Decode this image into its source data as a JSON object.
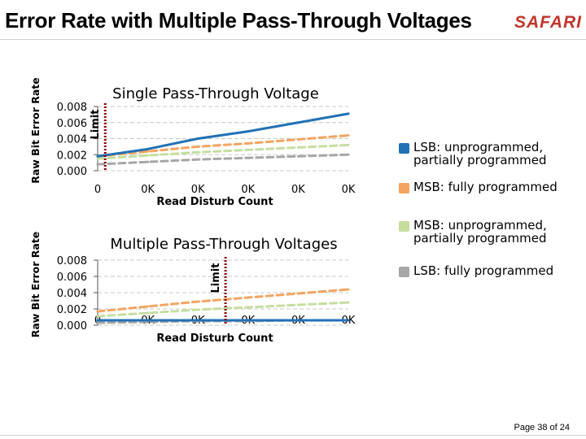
{
  "slide": {
    "title": "Error Rate with Multiple Pass-Through Voltages",
    "logo": "SAFARI",
    "page_number": "Page 38 of 24"
  },
  "colors": {
    "lsb_partial": "#2171b5",
    "msb_full": "#f4a460",
    "msb_partial": "#c5dea0",
    "lsb_full": "#a6a6a6",
    "limit": "#8b0000",
    "grid": "#c8c8c8"
  },
  "legend": [
    {
      "label": "LSB: unprogrammed, partially programmed",
      "color": "#2171b5"
    },
    {
      "label": "MSB: fully programmed",
      "color": "#f4a460"
    },
    {
      "label": "MSB: unprogrammed, partially programmed",
      "color": "#c5dea0"
    },
    {
      "label": "LSB: fully programmed",
      "color": "#a6a6a6"
    }
  ],
  "chart_data": [
    {
      "type": "line",
      "title": "Single Pass-Through Voltage",
      "xlabel": "Read Disturb Count",
      "ylabel": "Raw Bit Error Rate",
      "x_tick_labels": [
        "0",
        "0K",
        "0K",
        "0K",
        "0K",
        "0K"
      ],
      "y_tick_labels": [
        "0.008",
        "0.006",
        "0.004",
        "0.002",
        "0.000"
      ],
      "x": [
        0,
        1,
        2,
        3,
        4,
        5
      ],
      "xlim": [
        0,
        5
      ],
      "ylim": [
        0,
        0.008
      ],
      "grid": true,
      "limit": {
        "label": "Limit",
        "x": 0.15
      },
      "series": [
        {
          "name": "LSB: unprogrammed, partially programmed",
          "values": [
            0.0018,
            0.0027,
            0.004,
            0.0049,
            0.006,
            0.0071
          ],
          "dashed": false
        },
        {
          "name": "MSB: fully programmed",
          "values": [
            0.0018,
            0.0024,
            0.003,
            0.0034,
            0.0039,
            0.0044
          ],
          "dashed": true
        },
        {
          "name": "MSB: unprogrammed, partially programmed",
          "values": [
            0.0015,
            0.0019,
            0.0023,
            0.0026,
            0.0029,
            0.0032
          ],
          "dashed": true
        },
        {
          "name": "LSB: fully programmed",
          "values": [
            0.0008,
            0.0011,
            0.0014,
            0.0016,
            0.0018,
            0.002
          ],
          "dashed": true
        }
      ]
    },
    {
      "type": "line",
      "title": "Multiple Pass-Through Voltages",
      "xlabel": "Read Disturb Count",
      "ylabel": "Raw Bit Error Rate",
      "x_tick_labels": [
        "0",
        "0K",
        "0K",
        "0K",
        "0K",
        "0K"
      ],
      "y_tick_labels": [
        "0.008",
        "0.006",
        "0.004",
        "0.002",
        "0.000"
      ],
      "x": [
        0,
        1,
        2,
        3,
        4,
        5
      ],
      "xlim": [
        0,
        5
      ],
      "ylim": [
        0,
        0.008
      ],
      "grid": true,
      "limit": {
        "label": "Limit",
        "x": 2.55
      },
      "series": [
        {
          "name": "LSB: unprogrammed, partially programmed",
          "values": [
            0.0006,
            0.0006,
            0.0006,
            0.0006,
            0.0006,
            0.0006
          ],
          "dashed": false
        },
        {
          "name": "MSB: fully programmed",
          "values": [
            0.0017,
            0.0023,
            0.0029,
            0.0034,
            0.0039,
            0.0044
          ],
          "dashed": true
        },
        {
          "name": "MSB: unprogrammed, partially programmed",
          "values": [
            0.0011,
            0.0015,
            0.0019,
            0.0022,
            0.0025,
            0.0028
          ],
          "dashed": true
        },
        {
          "name": "LSB: fully programmed",
          "values": [
            0.0003,
            0.0004,
            0.0005,
            0.0005,
            0.0006,
            0.0006
          ],
          "dashed": true
        }
      ]
    }
  ]
}
